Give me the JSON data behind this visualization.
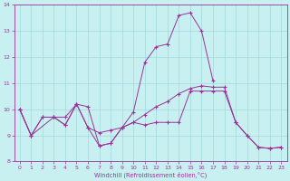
{
  "background_color": "#c8f0f0",
  "grid_color": "#a0d8d8",
  "line_color": "#993399",
  "xlabel": "Windchill (Refroidissement éolien,°C)",
  "xlim": [
    -0.5,
    23.5
  ],
  "ylim": [
    8,
    14
  ],
  "yticks": [
    8,
    9,
    10,
    11,
    12,
    13,
    14
  ],
  "xticks": [
    0,
    1,
    2,
    3,
    4,
    5,
    6,
    7,
    8,
    9,
    10,
    11,
    12,
    13,
    14,
    15,
    16,
    17,
    18,
    19,
    20,
    21,
    22,
    23
  ],
  "x_peak": [
    0,
    1,
    3,
    4,
    5,
    6,
    7,
    8,
    9,
    10,
    11,
    12,
    13,
    14,
    15,
    16,
    17
  ],
  "y_peak": [
    10.0,
    9.0,
    9.7,
    9.7,
    10.2,
    10.1,
    8.6,
    8.7,
    9.3,
    9.9,
    11.8,
    12.4,
    12.5,
    13.6,
    13.7,
    13.0,
    11.1
  ],
  "x_smooth": [
    0,
    1,
    2,
    3,
    4,
    5,
    6,
    7,
    8,
    9,
    10,
    11,
    12,
    13,
    14,
    15,
    16,
    17,
    18,
    19,
    20,
    21,
    22,
    23
  ],
  "y_smooth": [
    10.0,
    9.0,
    9.7,
    9.7,
    9.4,
    10.2,
    9.3,
    9.1,
    9.2,
    9.3,
    9.5,
    9.8,
    10.1,
    10.3,
    10.6,
    10.8,
    10.9,
    10.85,
    10.85,
    9.5,
    9.0,
    8.55,
    8.5,
    8.55
  ],
  "x_flat": [
    0,
    1,
    2,
    3,
    4,
    5,
    6,
    7,
    8,
    9,
    10,
    11,
    12,
    13,
    14,
    15,
    16,
    17,
    18,
    19,
    20,
    21,
    22,
    23
  ],
  "y_flat": [
    10.0,
    9.0,
    9.7,
    9.7,
    9.4,
    10.2,
    9.3,
    8.6,
    8.7,
    9.3,
    9.5,
    9.4,
    9.5,
    9.5,
    9.5,
    10.7,
    10.7,
    10.7,
    10.7,
    9.5,
    9.0,
    8.55,
    8.5,
    8.55
  ]
}
